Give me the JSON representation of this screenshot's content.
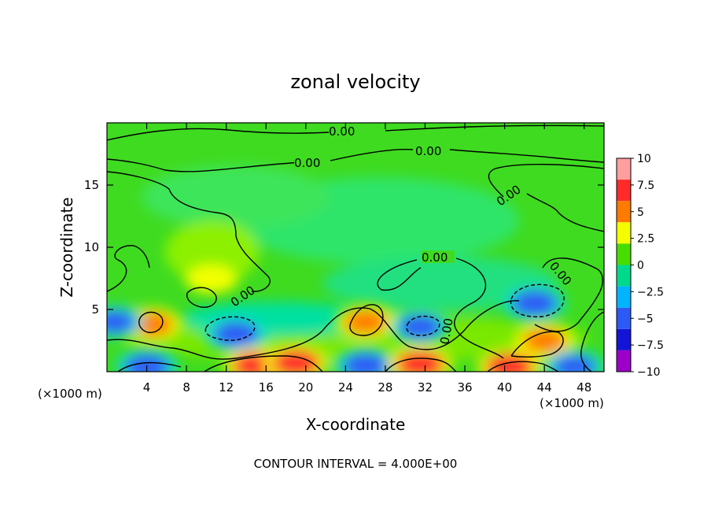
{
  "chart_data": {
    "type": "heatmap",
    "title": "zonal velocity",
    "xlabel": "X-coordinate",
    "ylabel": "Z-coordinate",
    "x_unit_left": "(×1000 m)",
    "x_unit_right": "(×1000 m)",
    "xlim": [
      0,
      50
    ],
    "ylim": [
      0,
      20
    ],
    "x_ticks": [
      4,
      8,
      12,
      16,
      20,
      24,
      28,
      32,
      36,
      40,
      44,
      48
    ],
    "y_ticks": [
      5,
      10,
      15
    ],
    "footer": "CONTOUR INTERVAL = 4.000E+00",
    "colorbar": {
      "min": -10,
      "max": 10,
      "ticks": [
        "10",
        "7.5",
        "5",
        "2.5",
        "0",
        "−2.5",
        "−5",
        "−7.5",
        "−10"
      ],
      "colors": [
        "#ff9e9e",
        "#ff2a2a",
        "#ff7a00",
        "#f3ff00",
        "#47dd00",
        "#00d98c",
        "#00b4ff",
        "#2d5af5",
        "#1414d8",
        "#9c00c8"
      ]
    },
    "contour_labels": [
      "0.00",
      "0.00",
      "0.00",
      "0.00",
      "0.00",
      "0.00",
      "0.00",
      "0.00"
    ],
    "features": [
      {
        "x": 4.5,
        "z": 3.8,
        "value": 6
      },
      {
        "x": 4,
        "z": 0.4,
        "value": -7
      },
      {
        "x": 13,
        "z": 3.0,
        "value": -7
      },
      {
        "x": 15,
        "z": 0.5,
        "value": 8
      },
      {
        "x": 19,
        "z": 0.7,
        "value": 8
      },
      {
        "x": 26,
        "z": 4.0,
        "value": 6
      },
      {
        "x": 26,
        "z": 0.5,
        "value": -7
      },
      {
        "x": 31.5,
        "z": 3.6,
        "value": -6
      },
      {
        "x": 31.5,
        "z": 0.6,
        "value": 8
      },
      {
        "x": 10.5,
        "z": 7.5,
        "value": 3
      },
      {
        "x": 43,
        "z": 5.5,
        "value": -7
      },
      {
        "x": 44,
        "z": 2.5,
        "value": 6
      },
      {
        "x": 40.5,
        "z": 0.4,
        "value": 8
      },
      {
        "x": 47,
        "z": 0.4,
        "value": -6
      },
      {
        "x": 0.8,
        "z": 4.0,
        "value": -5
      }
    ]
  }
}
